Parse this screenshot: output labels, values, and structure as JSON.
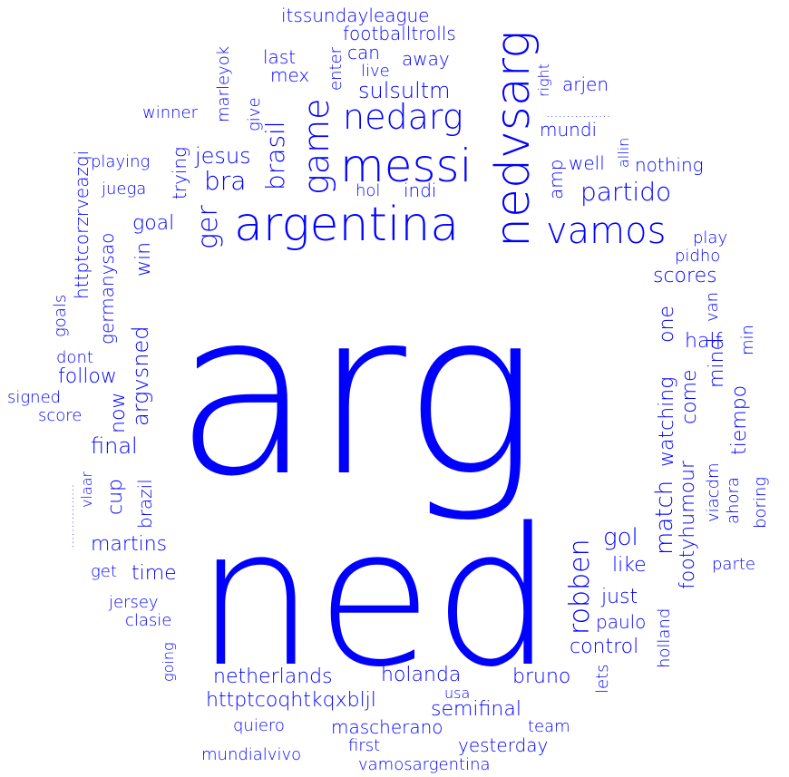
{
  "color": "#0000ff",
  "background": "#ffffff",
  "words": [
    {
      "text": "arg"
    },
    {
      "text": "ned"
    },
    {
      "text": "argentina"
    },
    {
      "text": "nedvsarg"
    },
    {
      "text": "messi"
    },
    {
      "text": "nedarg"
    },
    {
      "text": "vamos"
    },
    {
      "text": "game"
    },
    {
      "text": "partido"
    },
    {
      "text": "robben"
    },
    {
      "text": "argvsned"
    },
    {
      "text": "brasil"
    },
    {
      "text": "sulsultm"
    },
    {
      "text": "ger"
    },
    {
      "text": "bra"
    },
    {
      "text": "jesus"
    },
    {
      "text": "netherlands"
    },
    {
      "text": "holanda"
    },
    {
      "text": "httptcoqhtkqxbljl"
    },
    {
      "text": "semifinal"
    },
    {
      "text": "final"
    },
    {
      "text": "match"
    },
    {
      "text": "watching"
    },
    {
      "text": "one"
    },
    {
      "text": "come"
    },
    {
      "text": "footyhumour"
    },
    {
      "text": "gol"
    },
    {
      "text": "like"
    },
    {
      "text": "martins"
    },
    {
      "text": "time"
    },
    {
      "text": "goal"
    },
    {
      "text": "win"
    },
    {
      "text": "follow"
    },
    {
      "text": "now"
    },
    {
      "text": "germanysao"
    },
    {
      "text": "httptcorzrveazqi"
    },
    {
      "text": "cup"
    },
    {
      "text": "brazil"
    },
    {
      "text": "mascherano"
    },
    {
      "text": "bruno"
    },
    {
      "text": "just"
    },
    {
      "text": "paulo"
    },
    {
      "text": "control"
    },
    {
      "text": "holland"
    },
    {
      "text": "lets"
    },
    {
      "text": "scores"
    },
    {
      "text": "half"
    },
    {
      "text": "mind"
    },
    {
      "text": "tiempo"
    },
    {
      "text": "ahora"
    },
    {
      "text": "viacdm"
    },
    {
      "text": "boring"
    },
    {
      "text": "parte"
    },
    {
      "text": "van"
    },
    {
      "text": "min"
    },
    {
      "text": "play"
    },
    {
      "text": "pidho"
    },
    {
      "text": "nothing"
    },
    {
      "text": "well"
    },
    {
      "text": "allin"
    },
    {
      "text": "amp"
    },
    {
      "text": "mundi"
    },
    {
      "text": "................"
    },
    {
      "text": "right"
    },
    {
      "text": "arjen"
    },
    {
      "text": "away"
    },
    {
      "text": "live"
    },
    {
      "text": "can"
    },
    {
      "text": "footballtrolls"
    },
    {
      "text": "itssundayleague"
    },
    {
      "text": "enter"
    },
    {
      "text": "last"
    },
    {
      "text": "mex"
    },
    {
      "text": "marleyok"
    },
    {
      "text": "give"
    },
    {
      "text": "winner"
    },
    {
      "text": "playing"
    },
    {
      "text": "trying"
    },
    {
      "text": "juega"
    },
    {
      "text": "hol"
    },
    {
      "text": "indi"
    },
    {
      "text": "dont"
    },
    {
      "text": "goals"
    },
    {
      "text": "signed"
    },
    {
      "text": "score"
    },
    {
      "text": "vlaar"
    },
    {
      "text": "................"
    },
    {
      "text": "get"
    },
    {
      "text": "jersey"
    },
    {
      "text": "clasie"
    },
    {
      "text": "going"
    },
    {
      "text": "quiero"
    },
    {
      "text": "first"
    },
    {
      "text": "team"
    },
    {
      "text": "yesterday"
    },
    {
      "text": "mundialvivo"
    },
    {
      "text": "vamosargentina"
    },
    {
      "text": "usa"
    }
  ]
}
